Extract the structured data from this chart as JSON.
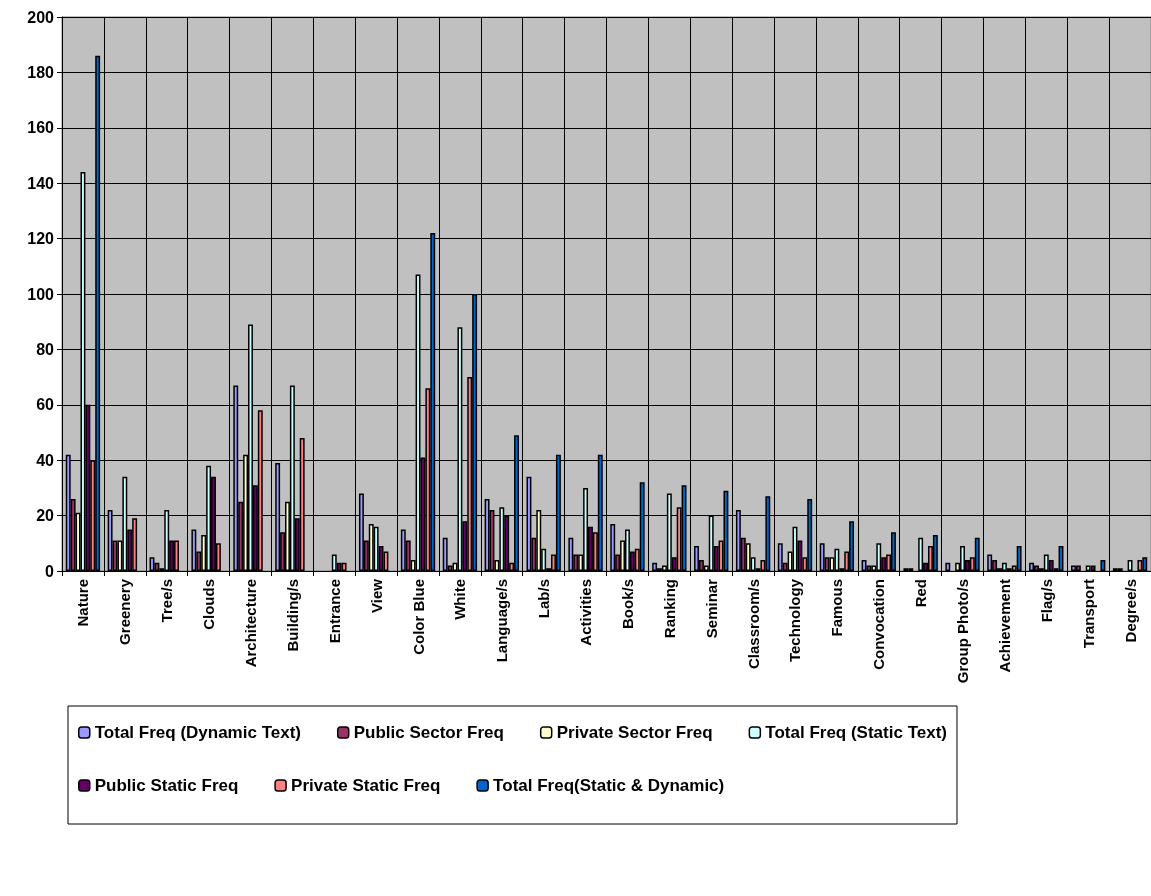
{
  "chart_data": {
    "type": "bar",
    "categories": [
      "Nature",
      "Greenery",
      "Tree/s",
      "Clouds",
      "Architecture",
      "Building/s",
      "Entrance",
      "View",
      "Color Blue",
      "White",
      "Language/s",
      "Lab/s",
      "Activities",
      "Book/s",
      "Ranking",
      "Seminar",
      "Classroom/s",
      "Technology",
      "Famous",
      "Convocation",
      "Red",
      "Group Photo/s",
      "Achievement",
      "Flag/s",
      "Transport",
      "Degree/s"
    ],
    "series": [
      {
        "name": "Total Freq (Dynamic Text)",
        "color": "#9999ff",
        "values": [
          42,
          22,
          5,
          15,
          67,
          39,
          0,
          28,
          15,
          12,
          26,
          34,
          12,
          17,
          3,
          9,
          22,
          10,
          10,
          4,
          1,
          3,
          6,
          3,
          2,
          1
        ]
      },
      {
        "name": "Public Sector Freq",
        "color": "#993366",
        "values": [
          26,
          11,
          3,
          7,
          25,
          14,
          0,
          11,
          11,
          2,
          22,
          12,
          6,
          6,
          1,
          4,
          12,
          3,
          5,
          2,
          1,
          0,
          4,
          2,
          2,
          1
        ]
      },
      {
        "name": "Private Sector Freq",
        "color": "#ffffcc",
        "values": [
          21,
          11,
          1,
          13,
          42,
          25,
          0,
          17,
          4,
          3,
          4,
          22,
          6,
          11,
          2,
          2,
          10,
          7,
          5,
          2,
          0,
          3,
          1,
          1,
          0,
          0
        ]
      },
      {
        "name": "Total Freq (Static Text)",
        "color": "#ccffff",
        "values": [
          144,
          34,
          22,
          38,
          89,
          67,
          6,
          16,
          107,
          88,
          23,
          8,
          30,
          15,
          28,
          20,
          5,
          16,
          8,
          10,
          12,
          9,
          3,
          6,
          2,
          4
        ]
      },
      {
        "name": "Public Static Freq",
        "color": "#660066",
        "values": [
          60,
          15,
          11,
          34,
          31,
          19,
          3,
          9,
          41,
          18,
          20,
          1,
          16,
          7,
          5,
          9,
          1,
          11,
          1,
          5,
          3,
          4,
          1,
          4,
          2,
          0
        ]
      },
      {
        "name": "Private Static Freq",
        "color": "#ff8080",
        "values": [
          40,
          19,
          11,
          10,
          58,
          48,
          3,
          7,
          66,
          70,
          3,
          6,
          14,
          8,
          23,
          11,
          4,
          5,
          7,
          6,
          9,
          5,
          2,
          1,
          0,
          4
        ]
      },
      {
        "name": "Total Freq(Static & Dynamic)",
        "color": "#0066cc",
        "values": [
          186,
          null,
          null,
          null,
          null,
          null,
          null,
          null,
          122,
          100,
          49,
          42,
          42,
          32,
          31,
          29,
          27,
          26,
          18,
          14,
          13,
          12,
          9,
          9,
          4,
          5
        ]
      }
    ],
    "ylim": [
      0,
      200
    ],
    "yticks": [
      0,
      20,
      40,
      60,
      80,
      100,
      120,
      140,
      160,
      180,
      200
    ],
    "grid": true,
    "legend": "bottom"
  }
}
